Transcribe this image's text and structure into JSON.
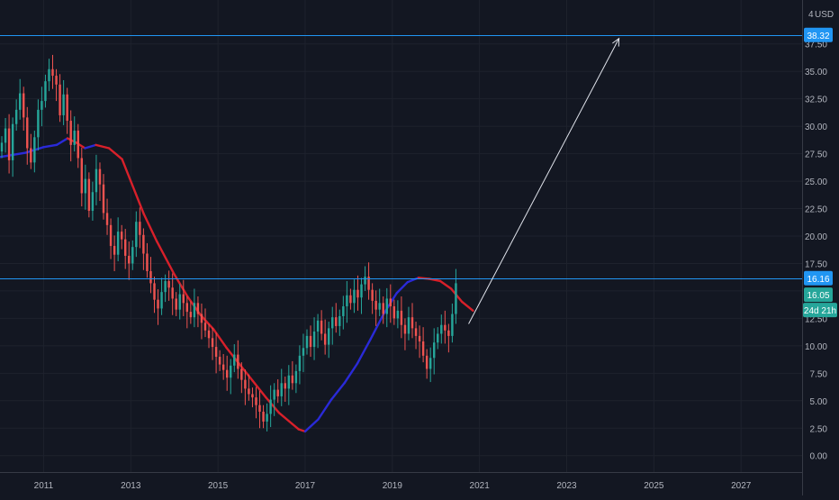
{
  "colors": {
    "background": "#131722",
    "grid": "#1e222d",
    "axis_text": "#b2b5be",
    "up": "#26a69a",
    "down": "#ef5350",
    "horizontal_line": "#2196f3",
    "ma_rising": "#2a2ad8",
    "ma_falling": "#d8202a",
    "arrow": "#e0e3eb",
    "separator": "#363a45"
  },
  "axis": {
    "currency": "USD",
    "scale_indicator": "4"
  },
  "chart_data": {
    "type": "candlestick",
    "title": "",
    "xlabel": "",
    "ylabel": "USD",
    "ylim": [
      -1.5,
      41.5
    ],
    "xlim": [
      2010.0,
      2028.4
    ],
    "grid": true,
    "x_ticks": [
      "2011",
      "2013",
      "2015",
      "2017",
      "2019",
      "2021",
      "2023",
      "2025",
      "2027"
    ],
    "y_ticks": [
      "0.00",
      "2.50",
      "5.00",
      "7.50",
      "10.00",
      "12.50",
      "15.00",
      "17.50",
      "20.00",
      "22.50",
      "25.00",
      "27.50",
      "30.00",
      "32.50",
      "35.00",
      "37.50"
    ],
    "candles_close": [
      28.5,
      29.8,
      26.9,
      30.2,
      31.5,
      33.0,
      30.8,
      28.0,
      26.7,
      29.0,
      31.5,
      32.3,
      34.1,
      35.2,
      34.6,
      33.8,
      31.0,
      32.9,
      30.5,
      28.3,
      29.6,
      27.1,
      23.9,
      25.2,
      22.3,
      24.0,
      26.1,
      24.7,
      22.1,
      21.0,
      19.1,
      18.3,
      20.4,
      19.7,
      18.2,
      17.5,
      19.0,
      21.3,
      20.1,
      18.4,
      16.8,
      15.7,
      14.2,
      13.4,
      14.9,
      15.9,
      15.3,
      14.3,
      13.3,
      14.7,
      13.9,
      13.1,
      12.6,
      13.9,
      12.9,
      12.1,
      11.4,
      10.7,
      9.9,
      9.0,
      8.3,
      7.8,
      7.1,
      8.2,
      9.2,
      7.9,
      6.9,
      6.1,
      5.6,
      5.3,
      4.6,
      4.0,
      3.1,
      3.8,
      5.1,
      6.0,
      5.4,
      6.6,
      6.1,
      7.3,
      6.6,
      7.7,
      9.1,
      9.8,
      10.9,
      9.9,
      11.3,
      12.3,
      11.1,
      10.1,
      11.6,
      12.6,
      11.8,
      12.7,
      13.6,
      14.6,
      13.9,
      15.1,
      14.4,
      15.6,
      16.3,
      15.1,
      14.1,
      13.3,
      13.9,
      12.9,
      14.3,
      13.6,
      12.5,
      13.2,
      11.9,
      11.1,
      12.6,
      11.6,
      10.9,
      10.4,
      9.1,
      7.9,
      8.9,
      10.3,
      11.1,
      11.9,
      11.4,
      10.9,
      12.9,
      15.7
    ],
    "candles_first_date": "2010-01",
    "candle_interval": "month",
    "moving_average": {
      "points": [
        [
          2010.0,
          27.2
        ],
        [
          2010.6,
          27.6
        ],
        [
          2011.0,
          28.1
        ],
        [
          2011.3,
          28.3
        ],
        [
          2011.55,
          28.9
        ],
        [
          2011.75,
          28.5
        ],
        [
          2011.95,
          28.0
        ],
        [
          2012.2,
          28.3
        ],
        [
          2012.5,
          28.0
        ],
        [
          2012.8,
          27.0
        ],
        [
          2013.0,
          25.0
        ],
        [
          2013.3,
          22.0
        ],
        [
          2013.6,
          19.5
        ],
        [
          2014.0,
          16.5
        ],
        [
          2014.3,
          14.5
        ],
        [
          2014.6,
          12.8
        ],
        [
          2014.9,
          11.5
        ],
        [
          2015.2,
          9.8
        ],
        [
          2015.5,
          8.3
        ],
        [
          2015.8,
          6.8
        ],
        [
          2016.1,
          5.3
        ],
        [
          2016.4,
          3.9
        ],
        [
          2016.7,
          2.9
        ],
        [
          2016.85,
          2.4
        ],
        [
          2017.0,
          2.2
        ],
        [
          2017.3,
          3.3
        ],
        [
          2017.6,
          5.1
        ],
        [
          2017.9,
          6.6
        ],
        [
          2018.2,
          8.4
        ],
        [
          2018.5,
          10.6
        ],
        [
          2018.8,
          12.9
        ],
        [
          2019.1,
          14.8
        ],
        [
          2019.35,
          15.8
        ],
        [
          2019.6,
          16.2
        ],
        [
          2019.85,
          16.1
        ],
        [
          2020.1,
          15.9
        ],
        [
          2020.35,
          15.2
        ],
        [
          2020.6,
          14.0
        ],
        [
          2020.85,
          13.2
        ]
      ]
    },
    "horizontal_levels": [
      {
        "value": 38.32,
        "label": "38.32"
      },
      {
        "value": 16.16,
        "label": "16.16"
      }
    ],
    "price_labels": [
      {
        "value": 16.05,
        "label": "16.05"
      }
    ],
    "countdown_label": "24d 21h",
    "projection_arrow": {
      "from": [
        2020.75,
        12.0
      ],
      "to": [
        2024.2,
        38.0
      ]
    }
  }
}
